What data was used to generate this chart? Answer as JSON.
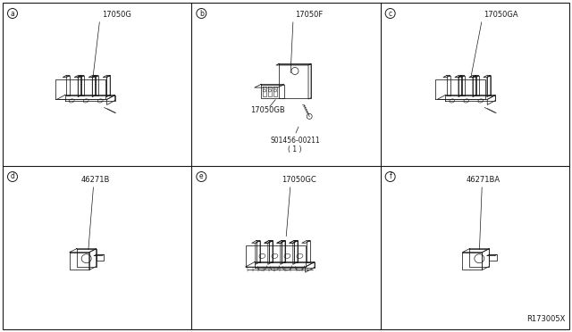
{
  "background_color": "#ffffff",
  "border_color": "#000000",
  "watermark": "R173005X",
  "fig_width": 6.4,
  "fig_height": 3.72,
  "dpi": 100,
  "panels": [
    {
      "col": 0,
      "row": 0,
      "letter": "a",
      "part": "17050G",
      "sub": null,
      "screw": null
    },
    {
      "col": 1,
      "row": 0,
      "letter": "b",
      "part": "17050F",
      "sub": "17050GB",
      "screw": "S01456-00211\n( 1 )"
    },
    {
      "col": 2,
      "row": 0,
      "letter": "c",
      "part": "17050GA",
      "sub": null,
      "screw": null
    },
    {
      "col": 0,
      "row": 1,
      "letter": "d",
      "part": "46271B",
      "sub": null,
      "screw": null
    },
    {
      "col": 1,
      "row": 1,
      "letter": "e",
      "part": "17050GC",
      "sub": null,
      "screw": null
    },
    {
      "col": 2,
      "row": 1,
      "letter": "f",
      "part": "46271BA",
      "sub": null,
      "screw": null
    }
  ]
}
